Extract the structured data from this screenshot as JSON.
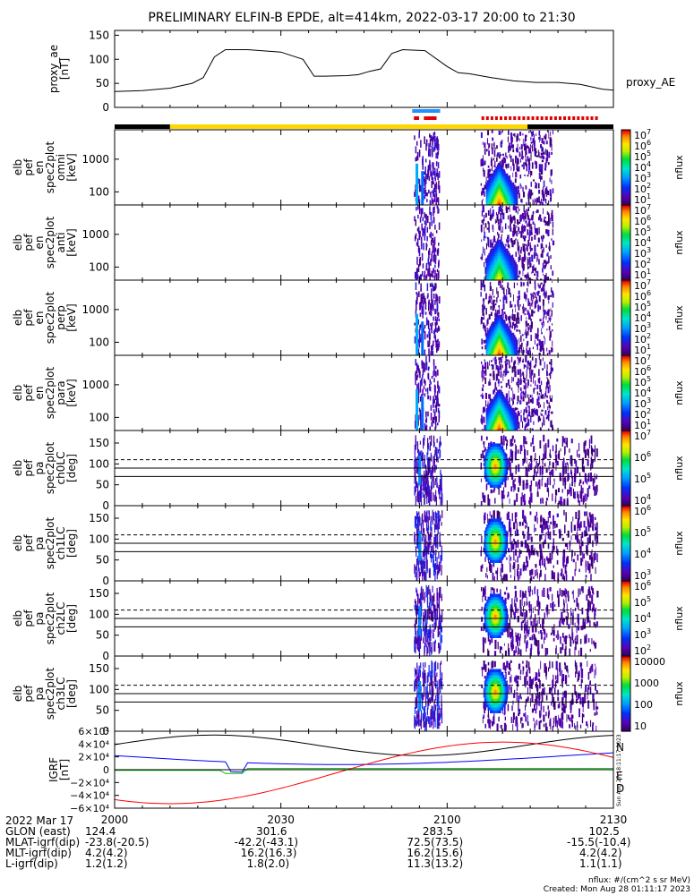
{
  "title": "PRELIMINARY ELFIN-B EPDE, alt=414km, 2022-03-17 20:00 to 21:30",
  "chart_data": {
    "type": "spectrogram",
    "time_range": [
      "20:00",
      "21:30"
    ],
    "panels": [
      {
        "id": "proxy_ae",
        "type": "line",
        "ylabel": [
          "proxy_ae",
          "[nT]"
        ],
        "yticks": [
          "150",
          "100",
          "50",
          "0"
        ],
        "ylim": [
          0,
          150
        ],
        "series_label": "proxy_AE",
        "series": {
          "name": "proxy_AE",
          "t_min": [
            0,
            5,
            10,
            12,
            14,
            16,
            18,
            20,
            24,
            30,
            34,
            36,
            38,
            42,
            44,
            46,
            48,
            50,
            52,
            56,
            60,
            62,
            64,
            68,
            72,
            76,
            80,
            84,
            88,
            90
          ],
          "values": [
            33,
            35,
            40,
            45,
            50,
            62,
            105,
            120,
            120,
            115,
            100,
            65,
            65,
            66,
            68,
            75,
            80,
            112,
            120,
            118,
            85,
            72,
            70,
            62,
            55,
            52,
            52,
            48,
            38,
            36
          ]
        }
      },
      {
        "id": "omni",
        "type": "heatmap",
        "ylabel": [
          "elb",
          "pef",
          "en",
          "spec2plot",
          "omni",
          "[keV]"
        ],
        "yticks": [
          "1000",
          "100"
        ],
        "zlabel": "nflux",
        "ztick_labels": [
          "10^7",
          "10^6",
          "10^5",
          "10^4",
          "10^3",
          "10^2",
          "10^1"
        ]
      },
      {
        "id": "anti",
        "type": "heatmap",
        "ylabel": [
          "elb",
          "pef",
          "en",
          "spec2plot",
          "anti",
          "[keV]"
        ],
        "yticks": [
          "1000",
          "100"
        ],
        "zlabel": "nflux",
        "ztick_labels": [
          "10^7",
          "10^6",
          "10^5",
          "10^4",
          "10^3",
          "10^2",
          "10^1"
        ]
      },
      {
        "id": "perp",
        "type": "heatmap",
        "ylabel": [
          "elb",
          "pef",
          "en",
          "spec2plot",
          "perp",
          "[keV]"
        ],
        "yticks": [
          "1000",
          "100"
        ],
        "zlabel": "nflux",
        "ztick_labels": [
          "10^7",
          "10^6",
          "10^5",
          "10^4",
          "10^3",
          "10^2",
          "10^1"
        ]
      },
      {
        "id": "para",
        "type": "heatmap",
        "ylabel": [
          "elb",
          "pef",
          "en",
          "spec2plot",
          "para",
          "[keV]"
        ],
        "yticks": [
          "1000",
          "100"
        ],
        "zlabel": "nflux",
        "ztick_labels": [
          "10^7",
          "10^6",
          "10^5",
          "10^4",
          "10^3",
          "10^2",
          "10^1"
        ]
      },
      {
        "id": "ch0LC",
        "type": "heatmap",
        "ylabel": [
          "elb",
          "pef",
          "pa",
          "spec2plot",
          "ch0LC",
          "[deg]"
        ],
        "yticks": [
          "150",
          "100",
          "50",
          "0"
        ],
        "zlabel": "nflux",
        "ztick_labels": [
          "10^7",
          "10^6",
          "10^5",
          "10^4"
        ]
      },
      {
        "id": "ch1LC",
        "type": "heatmap",
        "ylabel": [
          "elb",
          "pef",
          "pa",
          "spec2plot",
          "ch1LC",
          "[deg]"
        ],
        "yticks": [
          "150",
          "100",
          "50",
          "0"
        ],
        "zlabel": "nflux",
        "ztick_labels": [
          "10^6",
          "10^5",
          "10^4",
          "10^3"
        ]
      },
      {
        "id": "ch2LC",
        "type": "heatmap",
        "ylabel": [
          "elb",
          "pef",
          "pa",
          "spec2plot",
          "ch2LC",
          "[deg]"
        ],
        "yticks": [
          "150",
          "100",
          "50",
          "0"
        ],
        "zlabel": "nflux",
        "ztick_labels": [
          "10^6",
          "10^5",
          "10^4",
          "10^3",
          "10^2"
        ]
      },
      {
        "id": "ch3LC",
        "type": "heatmap",
        "ylabel": [
          "elb",
          "pef",
          "pa",
          "spec2plot",
          "ch3LC",
          "[deg]"
        ],
        "yticks": [
          "150",
          "100",
          "50",
          "0"
        ],
        "zlabel": "nflux",
        "ztick_labels": [
          "10000",
          "1000",
          "100",
          "10"
        ]
      },
      {
        "id": "igrf",
        "type": "line",
        "ylabel": [
          "IGRF",
          "[nT]"
        ],
        "yticks": [
          "6×10⁴",
          "4×10⁴",
          "2×10⁴",
          "0",
          "−2×10⁴",
          "−4×10⁴",
          "−6×10⁴"
        ],
        "ylim": [
          -60000,
          60000
        ],
        "legend": [
          "N",
          "E",
          "D"
        ],
        "colors": {
          "N": "#0000ff",
          "E": "#00c000",
          "D": "#ff0000",
          "total": "#000000"
        }
      }
    ],
    "xticks": [
      "2000",
      "2030",
      "2100",
      "2130"
    ],
    "colormap": "rainbow"
  },
  "ephemeris": {
    "rows": [
      {
        "label": "2022 Mar 17",
        "values": [
          "2000",
          "2030",
          "2100",
          "2130"
        ]
      },
      {
        "label": "GLON (east)",
        "values": [
          "124.4",
          "301.6",
          "283.5",
          "102.5"
        ]
      },
      {
        "label": "MLAT-igrf(dip)",
        "values": [
          "-23.8(-20.5)",
          "-42.2(-43.1)",
          "72.5(73.5)",
          "-15.5(-10.4)"
        ]
      },
      {
        "label": "MLT-igrf(dip)",
        "values": [
          "4.2(4.2)",
          "16.2(16.3)",
          "16.2(15.6)",
          "4.2(4.2)"
        ]
      },
      {
        "label": "L-igrf(dip)",
        "values": [
          "1.2(1.2)",
          "1.8(2.0)",
          "11.3(13.2)",
          "1.1(1.1)"
        ]
      }
    ]
  },
  "footer": {
    "units": "nflux: #/(cm^2 s sr MeV)",
    "created": "Created: Mon Aug 28 01:11:17 2023",
    "side_stamp": "Sun Aug 27 18:11:17 2023"
  }
}
